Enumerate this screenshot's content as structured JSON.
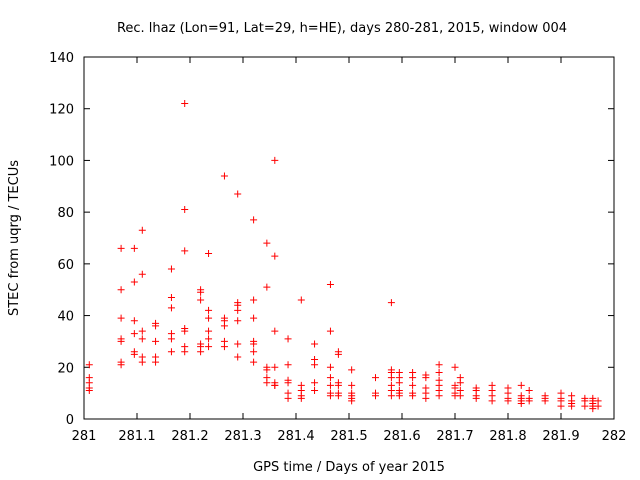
{
  "chart_data": {
    "type": "scatter",
    "title": "Rec. lhaz (Lon=91, Lat=29, h=HE), days 280-281, 2015, window 004",
    "xlabel": "GPS time / Days of year 2015",
    "ylabel": "STEC from uqrg / TECUs",
    "xlim": [
      281,
      282
    ],
    "ylim": [
      0,
      140
    ],
    "xticks": [
      "281",
      "281.1",
      "281.2",
      "281.3",
      "281.4",
      "281.5",
      "281.6",
      "281.7",
      "281.8",
      "281.9",
      "282"
    ],
    "yticks": [
      "0",
      "20",
      "40",
      "60",
      "80",
      "100",
      "120",
      "140"
    ],
    "grid": false,
    "legend": "none",
    "marker": "plus",
    "color": "#ff0000",
    "points": [
      [
        281.01,
        21
      ],
      [
        281.01,
        16
      ],
      [
        281.01,
        14
      ],
      [
        281.01,
        12
      ],
      [
        281.01,
        11
      ],
      [
        281.07,
        66
      ],
      [
        281.07,
        50
      ],
      [
        281.07,
        39
      ],
      [
        281.07,
        31
      ],
      [
        281.07,
        30
      ],
      [
        281.07,
        22
      ],
      [
        281.07,
        21
      ],
      [
        281.095,
        66
      ],
      [
        281.095,
        53
      ],
      [
        281.095,
        38
      ],
      [
        281.095,
        33
      ],
      [
        281.095,
        26
      ],
      [
        281.095,
        25
      ],
      [
        281.11,
        73
      ],
      [
        281.11,
        56
      ],
      [
        281.11,
        34
      ],
      [
        281.11,
        31
      ],
      [
        281.11,
        24
      ],
      [
        281.11,
        22
      ],
      [
        281.135,
        37
      ],
      [
        281.135,
        36
      ],
      [
        281.135,
        30
      ],
      [
        281.135,
        24
      ],
      [
        281.135,
        22
      ],
      [
        281.165,
        58
      ],
      [
        281.165,
        47
      ],
      [
        281.165,
        43
      ],
      [
        281.165,
        33
      ],
      [
        281.165,
        31
      ],
      [
        281.165,
        26
      ],
      [
        281.19,
        122
      ],
      [
        281.19,
        81
      ],
      [
        281.19,
        65
      ],
      [
        281.19,
        35
      ],
      [
        281.19,
        34
      ],
      [
        281.19,
        28
      ],
      [
        281.19,
        26
      ],
      [
        281.22,
        50
      ],
      [
        281.22,
        49
      ],
      [
        281.22,
        46
      ],
      [
        281.22,
        29
      ],
      [
        281.22,
        28
      ],
      [
        281.22,
        26
      ],
      [
        281.235,
        64
      ],
      [
        281.235,
        42
      ],
      [
        281.235,
        39
      ],
      [
        281.235,
        34
      ],
      [
        281.235,
        31
      ],
      [
        281.235,
        28
      ],
      [
        281.265,
        94
      ],
      [
        281.265,
        39
      ],
      [
        281.265,
        38
      ],
      [
        281.265,
        36
      ],
      [
        281.265,
        30
      ],
      [
        281.265,
        28
      ],
      [
        281.29,
        87
      ],
      [
        281.29,
        45
      ],
      [
        281.29,
        44
      ],
      [
        281.29,
        42
      ],
      [
        281.29,
        38
      ],
      [
        281.29,
        29
      ],
      [
        281.29,
        24
      ],
      [
        281.32,
        77
      ],
      [
        281.32,
        46
      ],
      [
        281.32,
        39
      ],
      [
        281.32,
        30
      ],
      [
        281.32,
        29
      ],
      [
        281.32,
        26
      ],
      [
        281.32,
        22
      ],
      [
        281.345,
        68
      ],
      [
        281.345,
        51
      ],
      [
        281.345,
        20
      ],
      [
        281.345,
        19
      ],
      [
        281.345,
        16
      ],
      [
        281.345,
        14
      ],
      [
        281.36,
        100
      ],
      [
        281.36,
        63
      ],
      [
        281.36,
        34
      ],
      [
        281.36,
        20
      ],
      [
        281.36,
        14
      ],
      [
        281.36,
        13
      ],
      [
        281.36,
        13
      ],
      [
        281.385,
        31
      ],
      [
        281.385,
        21
      ],
      [
        281.385,
        15
      ],
      [
        281.385,
        14
      ],
      [
        281.385,
        10
      ],
      [
        281.385,
        8
      ],
      [
        281.41,
        46
      ],
      [
        281.41,
        13
      ],
      [
        281.41,
        11
      ],
      [
        281.41,
        9
      ],
      [
        281.41,
        8
      ],
      [
        281.435,
        29
      ],
      [
        281.435,
        23
      ],
      [
        281.435,
        21
      ],
      [
        281.435,
        14
      ],
      [
        281.435,
        11
      ],
      [
        281.465,
        52
      ],
      [
        281.465,
        34
      ],
      [
        281.465,
        20
      ],
      [
        281.465,
        16
      ],
      [
        281.465,
        13
      ],
      [
        281.465,
        10
      ],
      [
        281.465,
        9
      ],
      [
        281.48,
        26
      ],
      [
        281.48,
        25
      ],
      [
        281.48,
        14
      ],
      [
        281.48,
        13
      ],
      [
        281.48,
        10
      ],
      [
        281.48,
        9
      ],
      [
        281.505,
        19
      ],
      [
        281.505,
        13
      ],
      [
        281.505,
        10
      ],
      [
        281.505,
        9
      ],
      [
        281.505,
        8
      ],
      [
        281.505,
        7
      ],
      [
        281.55,
        16
      ],
      [
        281.55,
        10
      ],
      [
        281.55,
        9
      ],
      [
        281.58,
        45
      ],
      [
        281.58,
        19
      ],
      [
        281.58,
        18
      ],
      [
        281.58,
        16
      ],
      [
        281.58,
        13
      ],
      [
        281.58,
        11
      ],
      [
        281.58,
        9
      ],
      [
        281.595,
        18
      ],
      [
        281.595,
        16
      ],
      [
        281.595,
        14
      ],
      [
        281.595,
        11
      ],
      [
        281.595,
        10
      ],
      [
        281.595,
        9
      ],
      [
        281.62,
        18
      ],
      [
        281.62,
        16
      ],
      [
        281.62,
        13
      ],
      [
        281.62,
        10
      ],
      [
        281.62,
        9
      ],
      [
        281.645,
        17
      ],
      [
        281.645,
        16
      ],
      [
        281.645,
        12
      ],
      [
        281.645,
        10
      ],
      [
        281.645,
        8
      ],
      [
        281.67,
        21
      ],
      [
        281.67,
        18
      ],
      [
        281.67,
        15
      ],
      [
        281.67,
        13
      ],
      [
        281.67,
        11
      ],
      [
        281.67,
        9
      ],
      [
        281.7,
        20
      ],
      [
        281.7,
        13
      ],
      [
        281.7,
        12
      ],
      [
        281.7,
        10
      ],
      [
        281.7,
        9
      ],
      [
        281.71,
        16
      ],
      [
        281.71,
        14
      ],
      [
        281.71,
        11
      ],
      [
        281.71,
        9
      ],
      [
        281.74,
        12
      ],
      [
        281.74,
        11
      ],
      [
        281.74,
        9
      ],
      [
        281.74,
        8
      ],
      [
        281.77,
        13
      ],
      [
        281.77,
        11
      ],
      [
        281.77,
        9
      ],
      [
        281.77,
        7
      ],
      [
        281.8,
        12
      ],
      [
        281.8,
        10
      ],
      [
        281.8,
        8
      ],
      [
        281.8,
        7
      ],
      [
        281.825,
        13
      ],
      [
        281.825,
        9
      ],
      [
        281.825,
        8
      ],
      [
        281.825,
        7
      ],
      [
        281.825,
        6
      ],
      [
        281.84,
        11
      ],
      [
        281.84,
        8
      ],
      [
        281.84,
        7
      ],
      [
        281.87,
        9
      ],
      [
        281.87,
        8
      ],
      [
        281.87,
        7
      ],
      [
        281.9,
        10
      ],
      [
        281.9,
        8
      ],
      [
        281.9,
        7
      ],
      [
        281.9,
        5
      ],
      [
        281.92,
        9
      ],
      [
        281.92,
        7
      ],
      [
        281.92,
        6
      ],
      [
        281.92,
        5
      ],
      [
        281.945,
        8
      ],
      [
        281.945,
        7
      ],
      [
        281.945,
        5
      ],
      [
        281.96,
        8
      ],
      [
        281.96,
        7
      ],
      [
        281.96,
        6
      ],
      [
        281.96,
        5
      ],
      [
        281.96,
        4
      ],
      [
        281.97,
        7
      ],
      [
        281.97,
        5
      ]
    ]
  }
}
